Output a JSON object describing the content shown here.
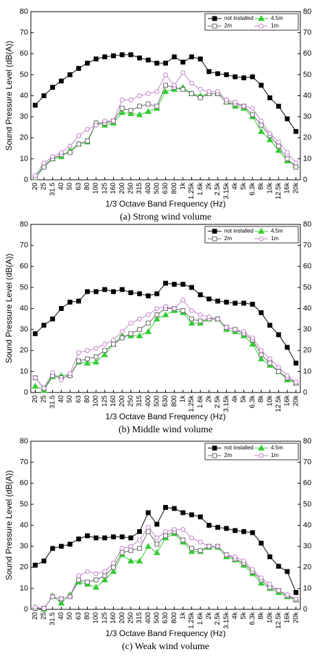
{
  "chart_data": [
    {
      "type": "line",
      "caption": "(a) Strong wind volume",
      "xlabel": "1/3 Octave Band Frequency (Hz)",
      "ylabel": "Sound Pressure Level (dB(A))",
      "categories": [
        "20",
        "25",
        "31.5",
        "40",
        "50",
        "63",
        "80",
        "100",
        "125",
        "160",
        "200",
        "250",
        "315",
        "400",
        "500",
        "630",
        "800",
        "1k",
        "1.25k",
        "1.6k",
        "2k",
        "2.5k",
        "3.15k",
        "4k",
        "5k",
        "6.3k",
        "8k",
        "10k",
        "12.5k",
        "16k",
        "20k"
      ],
      "ylim": [
        0,
        80
      ],
      "yticks": [
        0,
        10,
        20,
        30,
        40,
        50,
        60,
        70,
        80
      ],
      "legend": "upper right",
      "series": [
        {
          "name": "not installed",
          "color": "#000000",
          "marker": "square-filled",
          "values": [
            35.5,
            40,
            44,
            47,
            50,
            53,
            55.5,
            57.5,
            58.5,
            59,
            59.5,
            59.5,
            58,
            57,
            55.5,
            55.5,
            58.5,
            56,
            58.5,
            57.5,
            51.5,
            50.5,
            50,
            49,
            48.5,
            49,
            45,
            39,
            35,
            29,
            23
          ]
        },
        {
          "name": "4.5m",
          "color": "#33cc33",
          "marker": "triangle-filled",
          "values": [
            1,
            7,
            10,
            11,
            14,
            17,
            18,
            27,
            26,
            27,
            32,
            31.5,
            31,
            32.5,
            34,
            42,
            43,
            44,
            41,
            40,
            41,
            41,
            37,
            35,
            34,
            30,
            23,
            19,
            14,
            9,
            7
          ]
        },
        {
          "name": "2m",
          "color": "#666666",
          "marker": "square-open",
          "values": [
            1,
            6,
            10,
            12,
            13,
            17,
            18.5,
            27,
            27,
            28,
            34,
            33,
            35,
            36,
            35,
            45,
            44,
            43,
            41,
            39,
            41,
            41,
            37,
            36,
            35,
            31,
            26,
            21,
            16,
            10,
            6
          ]
        },
        {
          "name": "1m",
          "color": "#c080c8",
          "marker": "circle-open",
          "values": [
            2,
            8,
            11,
            13,
            16,
            21,
            24,
            26,
            28,
            28,
            38,
            38,
            40,
            41,
            42,
            50,
            45,
            51,
            46,
            43,
            42,
            42,
            38,
            37,
            35,
            34,
            28,
            22,
            18,
            13,
            8
          ]
        }
      ]
    },
    {
      "type": "line",
      "caption": "(b) Middle wind volume",
      "xlabel": "1/3 Octave Band Frequency (Hz)",
      "ylabel": "Sound Pressure Level (dB(A))",
      "categories": [
        "20",
        "25",
        "31.5",
        "40",
        "50",
        "63",
        "80",
        "100",
        "125",
        "160",
        "200",
        "250",
        "315",
        "400",
        "500",
        "630",
        "800",
        "1k",
        "1.25k",
        "1.6k",
        "2k",
        "2.5k",
        "3.15k",
        "4k",
        "5k",
        "6.3k",
        "8k",
        "10k",
        "12.5k",
        "16k",
        "20k"
      ],
      "ylim": [
        0,
        80
      ],
      "yticks": [
        0,
        10,
        20,
        30,
        40,
        50,
        60,
        70,
        80
      ],
      "legend": "upper right",
      "series": [
        {
          "name": "not installed",
          "color": "#000000",
          "marker": "square-filled",
          "values": [
            28,
            32,
            35,
            40,
            43,
            43.5,
            48,
            48,
            49,
            48,
            49,
            47.5,
            47,
            46,
            47,
            52,
            51.5,
            51.5,
            50,
            46.5,
            44.5,
            43.5,
            43,
            42.5,
            42.5,
            42,
            38,
            32,
            27.5,
            21.5,
            14
          ]
        },
        {
          "name": "4.5m",
          "color": "#33cc33",
          "marker": "triangle-filled",
          "values": [
            3,
            1,
            7.5,
            8,
            8.5,
            14.5,
            14,
            14.5,
            18,
            23,
            27,
            27,
            27,
            29,
            35,
            37,
            39,
            38,
            33,
            33,
            35,
            35,
            30,
            29,
            27,
            23,
            16,
            13,
            10,
            6,
            4.5
          ]
        },
        {
          "name": "2m",
          "color": "#666666",
          "marker": "square-open",
          "values": [
            7,
            2,
            8,
            7,
            8,
            15,
            16,
            17,
            20,
            23,
            26,
            28,
            30,
            33,
            37,
            40,
            40,
            39,
            35,
            34,
            35,
            35,
            31,
            30,
            28,
            25,
            18,
            14,
            10,
            7,
            4.5
          ]
        },
        {
          "name": "1m",
          "color": "#c080c8",
          "marker": "circle-open",
          "values": [
            7,
            2,
            9.5,
            6,
            9,
            19,
            20,
            21,
            23,
            25,
            29,
            33,
            35,
            37,
            40,
            41,
            40,
            44,
            39,
            37,
            36,
            35,
            31,
            30,
            29,
            26,
            20,
            16,
            12,
            8,
            5
          ]
        }
      ]
    },
    {
      "type": "line",
      "caption": "(c) Weak wind volume",
      "xlabel": "1/3 Octave Band Frequency (Hz)",
      "ylabel": "Sound Pressure Level (dB(A))",
      "categories": [
        "20",
        "25",
        "31.5",
        "40",
        "50",
        "63",
        "80",
        "100",
        "125",
        "160",
        "200",
        "250",
        "315",
        "400",
        "500",
        "630",
        "800",
        "1k",
        "1.25k",
        "1.6k",
        "2k",
        "2.5k",
        "3.15k",
        "4k",
        "5k",
        "6.3k",
        "8k",
        "10k",
        "12.5k",
        "16k",
        "20k"
      ],
      "ylim": [
        0,
        80
      ],
      "yticks": [
        0,
        10,
        20,
        30,
        40,
        50,
        60,
        70,
        80
      ],
      "legend": "upper right",
      "series": [
        {
          "name": "not installed",
          "color": "#000000",
          "marker": "square-filled",
          "values": [
            21,
            23,
            29,
            30,
            31,
            33.5,
            35,
            34,
            34,
            34.5,
            34.5,
            34,
            37,
            46,
            40.5,
            48.5,
            48,
            46,
            45,
            44,
            40,
            39,
            38.5,
            37.5,
            37,
            36.5,
            31.5,
            25,
            20.5,
            18,
            8
          ]
        },
        {
          "name": "4.5m",
          "color": "#33cc33",
          "marker": "triangle-filled",
          "values": [
            1,
            0,
            6.5,
            3,
            7,
            13,
            12,
            10.5,
            14,
            18,
            26,
            23,
            23,
            30,
            27,
            34,
            36,
            32,
            27.5,
            27.5,
            29.5,
            29.5,
            25,
            23.5,
            21,
            17,
            12.5,
            10,
            8,
            6,
            4.5
          ]
        },
        {
          "name": "2m",
          "color": "#666666",
          "marker": "square-open",
          "values": [
            0.5,
            0.5,
            6,
            5,
            6,
            14,
            13,
            14,
            16,
            20,
            27,
            28,
            29,
            37,
            31,
            35,
            37,
            33,
            29,
            28,
            30,
            30,
            26,
            24,
            22,
            18,
            14,
            10.5,
            9,
            6.5,
            4.5
          ]
        },
        {
          "name": "1m",
          "color": "#c080c8",
          "marker": "circle-open",
          "values": [
            1,
            0.5,
            6,
            5,
            6,
            16,
            18,
            17,
            18,
            22,
            29,
            30,
            33,
            39,
            34,
            37,
            38,
            38,
            34,
            32,
            30,
            30,
            26,
            25,
            23,
            19,
            15,
            12,
            9,
            7,
            5
          ]
        }
      ]
    }
  ]
}
